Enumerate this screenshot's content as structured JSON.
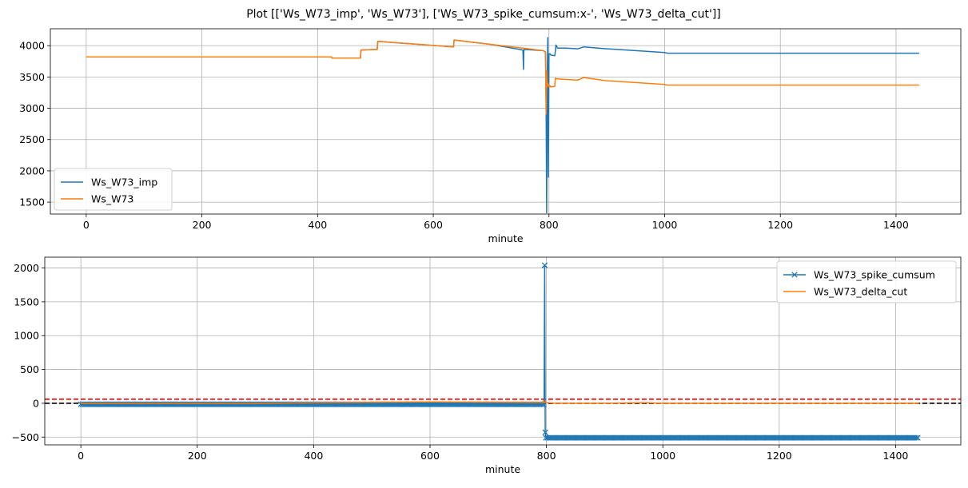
{
  "figure_title": "Plot [['Ws_W73_imp', 'Ws_W73'], ['Ws_W73_spike_cumsum:x-', 'Ws_W73_delta_cut']]",
  "colors": {
    "blue": "#1f77b4",
    "orange": "#ff7f0e",
    "red": "#ff0000",
    "black": "#000000",
    "grid": "#b0b0b0"
  },
  "chart_data": [
    {
      "type": "line",
      "xlabel": "minute",
      "ylabel": "",
      "xlim": [
        -62,
        1512
      ],
      "ylim": [
        1310,
        4270
      ],
      "xticks": [
        0,
        200,
        400,
        600,
        800,
        1000,
        1200,
        1400
      ],
      "yticks": [
        1500,
        2000,
        2500,
        3000,
        3500,
        4000
      ],
      "grid": true,
      "legend": "lower left",
      "series": [
        {
          "name": "Ws_W73_imp",
          "color": "blue",
          "x": [
            0,
            424,
            425,
            474,
            475,
            503,
            504,
            560,
            635,
            636,
            700,
            755,
            756,
            756.5,
            757,
            790,
            794,
            795,
            796,
            797,
            798,
            799,
            800,
            802,
            803,
            810,
            811,
            812,
            815,
            830,
            850,
            860,
            900,
            950,
            1000,
            1005,
            1440
          ],
          "y": [
            3820,
            3820,
            3800,
            3800,
            3930,
            3940,
            4070,
            4030,
            3980,
            4090,
            4020,
            3930,
            3620,
            3900,
            3940,
            3920,
            3900,
            3060,
            1330,
            3500,
            4130,
            1900,
            3870,
            3870,
            3850,
            3840,
            3900,
            4010,
            3960,
            3960,
            3950,
            3980,
            3950,
            3920,
            3890,
            3880,
            3880
          ]
        },
        {
          "name": "Ws_W73",
          "color": "orange",
          "x": [
            0,
            424,
            425,
            474,
            475,
            503,
            504,
            560,
            635,
            636,
            700,
            755,
            790,
            794,
            795,
            796,
            797,
            798,
            800,
            802,
            803,
            810,
            811,
            812,
            815,
            830,
            850,
            860,
            900,
            950,
            1000,
            1005,
            1440
          ],
          "y": [
            3820,
            3820,
            3800,
            3800,
            3930,
            3940,
            4070,
            4030,
            3980,
            4090,
            4020,
            3960,
            3920,
            3900,
            2910,
            3600,
            3340,
            3400,
            3350,
            3360,
            3340,
            3350,
            3480,
            3470,
            3470,
            3460,
            3450,
            3490,
            3440,
            3410,
            3380,
            3370,
            3370
          ]
        }
      ]
    },
    {
      "type": "line",
      "xlabel": "minute",
      "ylabel": "",
      "xlim": [
        -62,
        1512
      ],
      "ylim": [
        -615,
        2160
      ],
      "xticks": [
        0,
        200,
        400,
        600,
        800,
        1000,
        1200,
        1400
      ],
      "yticks": [
        -500,
        0,
        500,
        1000,
        1500,
        2000
      ],
      "grid": true,
      "legend": "upper right",
      "hlines": [
        {
          "y": 60,
          "color": "red",
          "style": "dashed"
        },
        {
          "y": 0,
          "color": "black",
          "style": "dashed"
        }
      ],
      "series": [
        {
          "name": "Ws_W73_spike_cumsum",
          "color": "blue",
          "marker": "x",
          "x_start": 0,
          "x_end": 1440,
          "segments": [
            {
              "from": 0,
              "to": 796,
              "value": -15
            },
            {
              "at": 797,
              "value": 2040
            },
            {
              "at": 798,
              "value": -430
            },
            {
              "from": 799,
              "to": 1440,
              "value": -510
            }
          ],
          "x": [
            0,
            796,
            797,
            798,
            799,
            1440
          ],
          "y": [
            -15,
            -15,
            2040,
            -430,
            -510,
            -510
          ]
        },
        {
          "name": "Ws_W73_delta_cut",
          "color": "orange",
          "x": [
            0,
            300,
            600,
            700,
            794,
            795,
            796,
            800,
            811,
            812,
            900,
            970,
            1000,
            1440
          ],
          "y": [
            0,
            0,
            20,
            15,
            10,
            40,
            20,
            10,
            5,
            0,
            0,
            10,
            0,
            0
          ]
        }
      ]
    }
  ]
}
